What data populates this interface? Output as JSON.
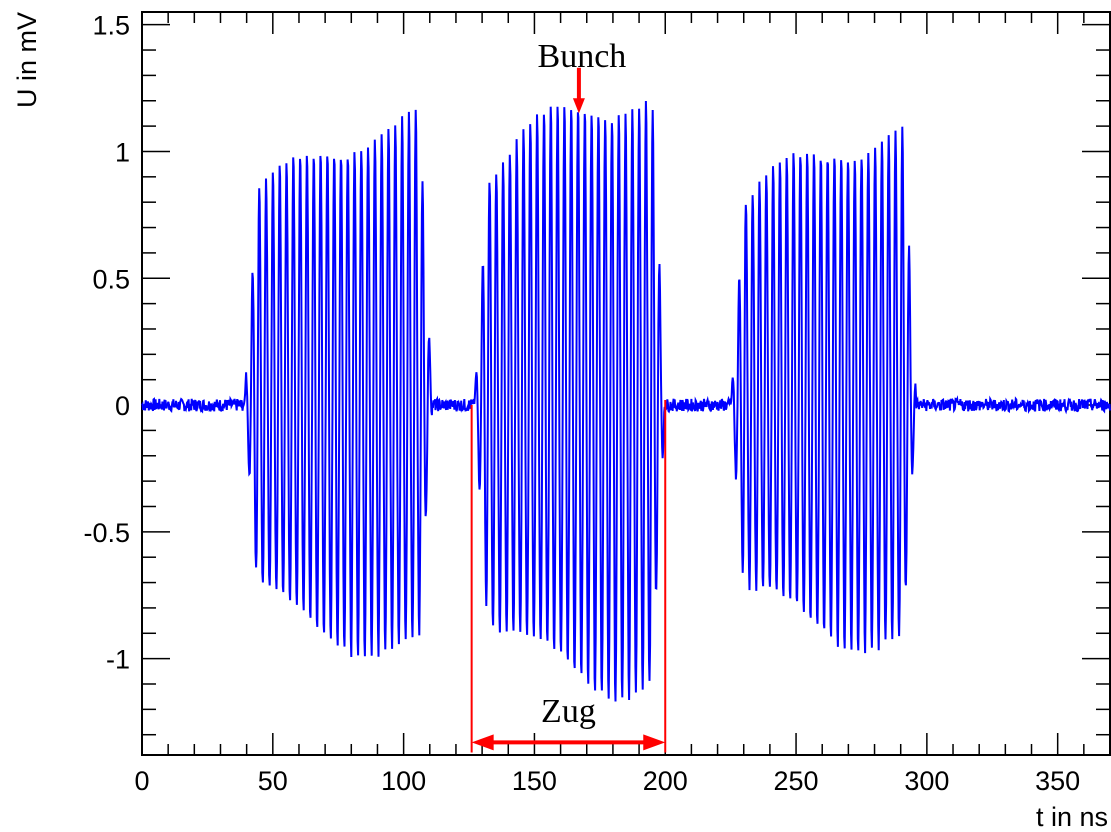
{
  "chart_data": {
    "type": "line",
    "title": "",
    "xlabel": "t in ns",
    "ylabel": "U in mV",
    "xlim": [
      0,
      370
    ],
    "ylim": [
      -1.38,
      1.55
    ],
    "xticks": [
      0,
      50,
      100,
      150,
      200,
      250,
      300,
      350
    ],
    "yticks": [
      -1,
      -0.5,
      0,
      0.5,
      1,
      1.5
    ],
    "xtick_labels": [
      "0",
      "50",
      "100",
      "150",
      "200",
      "250",
      "300",
      "350"
    ],
    "ytick_labels": [
      "-1",
      "-0.5",
      "0",
      "0.5",
      "1",
      "1.5"
    ],
    "grid": false,
    "series": [
      {
        "color": "#0000ff",
        "bunch_period_ns": 2.6,
        "trains": [
          {
            "start": 39,
            "end": 111,
            "peak_max": 1.16,
            "peak_min": -1.02
          },
          {
            "start": 127,
            "end": 200,
            "peak_max": 1.29,
            "peak_min": -1.17
          },
          {
            "start": 225,
            "end": 296,
            "peak_max": 1.12,
            "peak_min": -0.99
          }
        ],
        "baseline": 0.0,
        "baseline_noise": 0.025
      }
    ],
    "annotations": [
      {
        "text": "Bunch",
        "x": 167,
        "y": 1.33,
        "arrow_to": [
          167,
          1.15
        ],
        "color": "#ff0000"
      },
      {
        "text": "Zug",
        "x": 163,
        "y": -1.25,
        "span": [
          126,
          200
        ],
        "arrow_y": -1.33,
        "color": "#ff0000"
      }
    ]
  }
}
